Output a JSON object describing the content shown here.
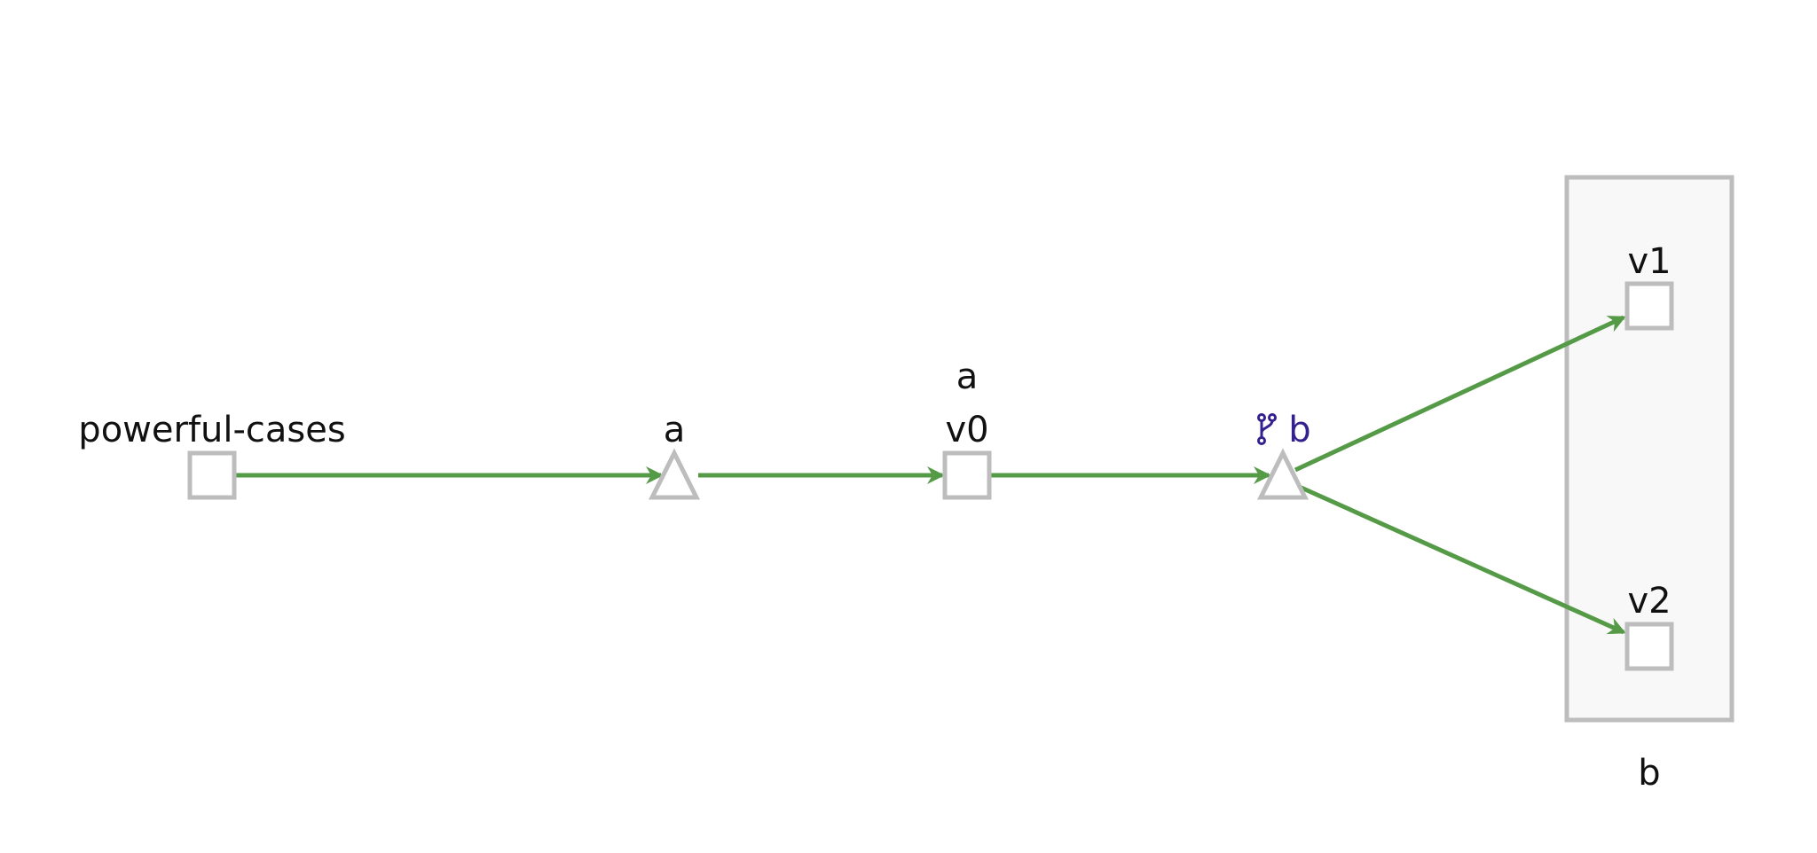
{
  "diagram": {
    "nodes": [
      {
        "id": "powerful-cases",
        "label": "powerful-cases",
        "shape": "square"
      },
      {
        "id": "a-step",
        "label": "a",
        "shape": "triangle"
      },
      {
        "id": "v0",
        "label": "v0",
        "shape": "square",
        "group_label": "a"
      },
      {
        "id": "b-step",
        "label": "b",
        "shape": "triangle",
        "icon": "branch-icon"
      },
      {
        "id": "v1",
        "label": "v1",
        "shape": "square"
      },
      {
        "id": "v2",
        "label": "v2",
        "shape": "square"
      }
    ],
    "group": {
      "id": "b-group",
      "label": "b",
      "contains": [
        "v1",
        "v2"
      ]
    },
    "edges": [
      {
        "from": "powerful-cases",
        "to": "a-step"
      },
      {
        "from": "a-step",
        "to": "v0"
      },
      {
        "from": "v0",
        "to": "b-step"
      },
      {
        "from": "b-step",
        "to": "v1"
      },
      {
        "from": "b-step",
        "to": "v2"
      }
    ],
    "colors": {
      "edge": "#559a46",
      "node_stroke": "#bdbdbd",
      "group_fill": "#f8f8f8",
      "branch_label": "#35208f"
    }
  }
}
